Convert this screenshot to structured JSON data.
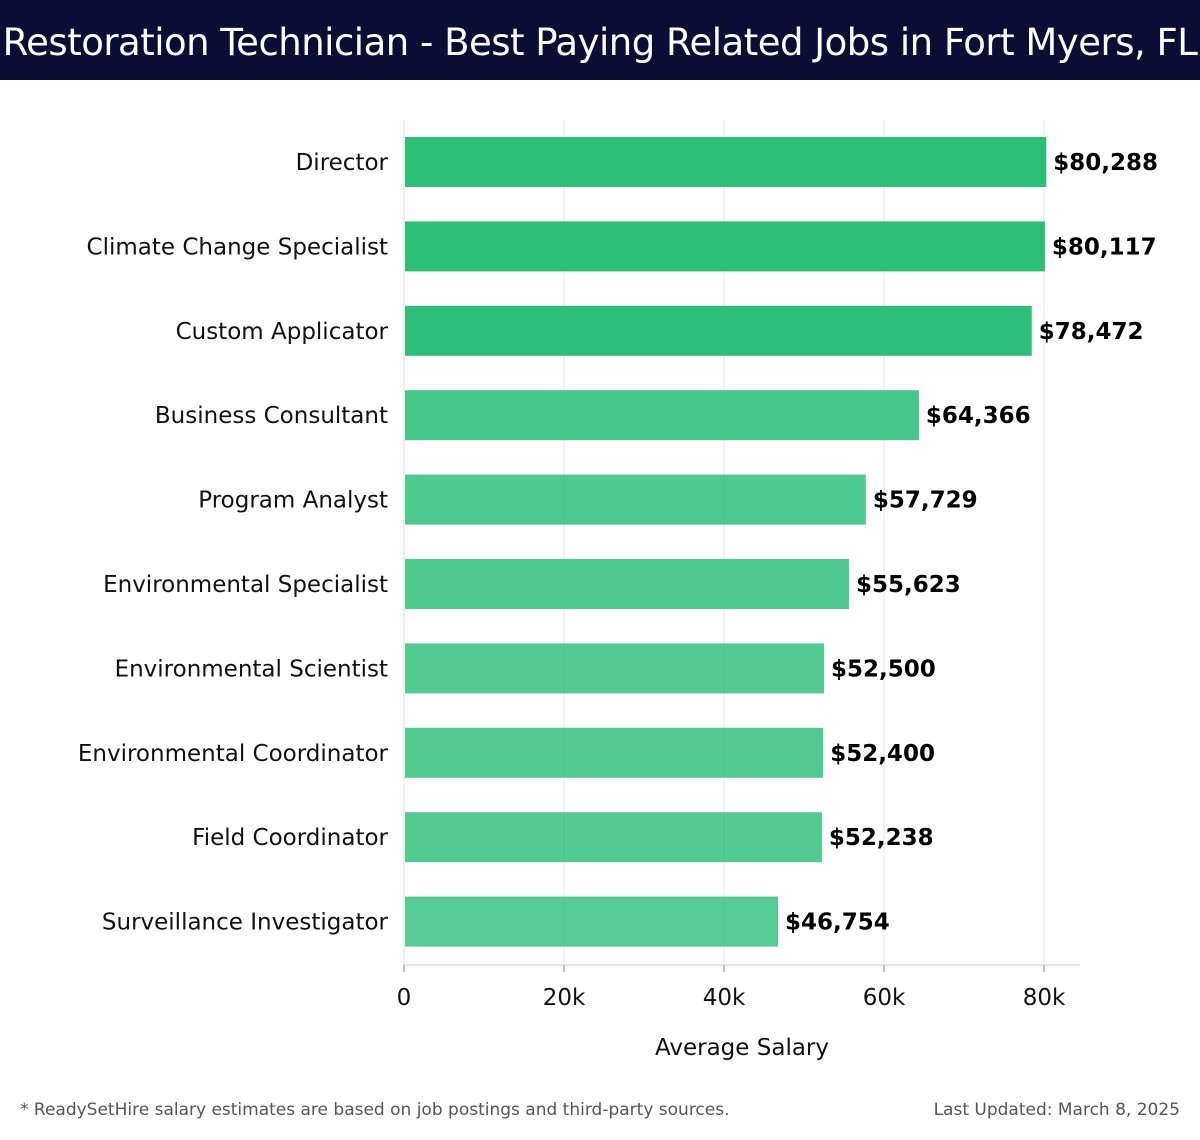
{
  "header": {
    "title": "Restoration Technician - Best Paying Related Jobs in Fort Myers, FL"
  },
  "chart_data": {
    "type": "bar",
    "orientation": "horizontal",
    "categories": [
      "Director",
      "Climate Change Specialist",
      "Custom Applicator",
      "Business Consultant",
      "Program Analyst",
      "Environmental Specialist",
      "Environmental Scientist",
      "Environmental Coordinator",
      "Field Coordinator",
      "Surveillance Investigator"
    ],
    "values": [
      80288,
      80117,
      78472,
      64366,
      57729,
      55623,
      52500,
      52400,
      52238,
      46754
    ],
    "value_labels": [
      "$80,288",
      "$80,117",
      "$78,472",
      "$64,366",
      "$57,729",
      "$55,623",
      "$52,500",
      "$52,400",
      "$52,238",
      "$46,754"
    ],
    "xlabel": "Average Salary",
    "xlim": [
      0,
      84500
    ],
    "xticks": [
      0,
      20000,
      40000,
      60000,
      80000
    ],
    "xtick_labels": [
      "0",
      "20k",
      "40k",
      "60k",
      "80k"
    ],
    "grid": "vertical",
    "bar_color": "#2bbf78"
  },
  "footer": {
    "note": "* ReadySetHire salary estimates are based on job postings and third-party sources.",
    "updated": "Last Updated: March 8, 2025"
  }
}
